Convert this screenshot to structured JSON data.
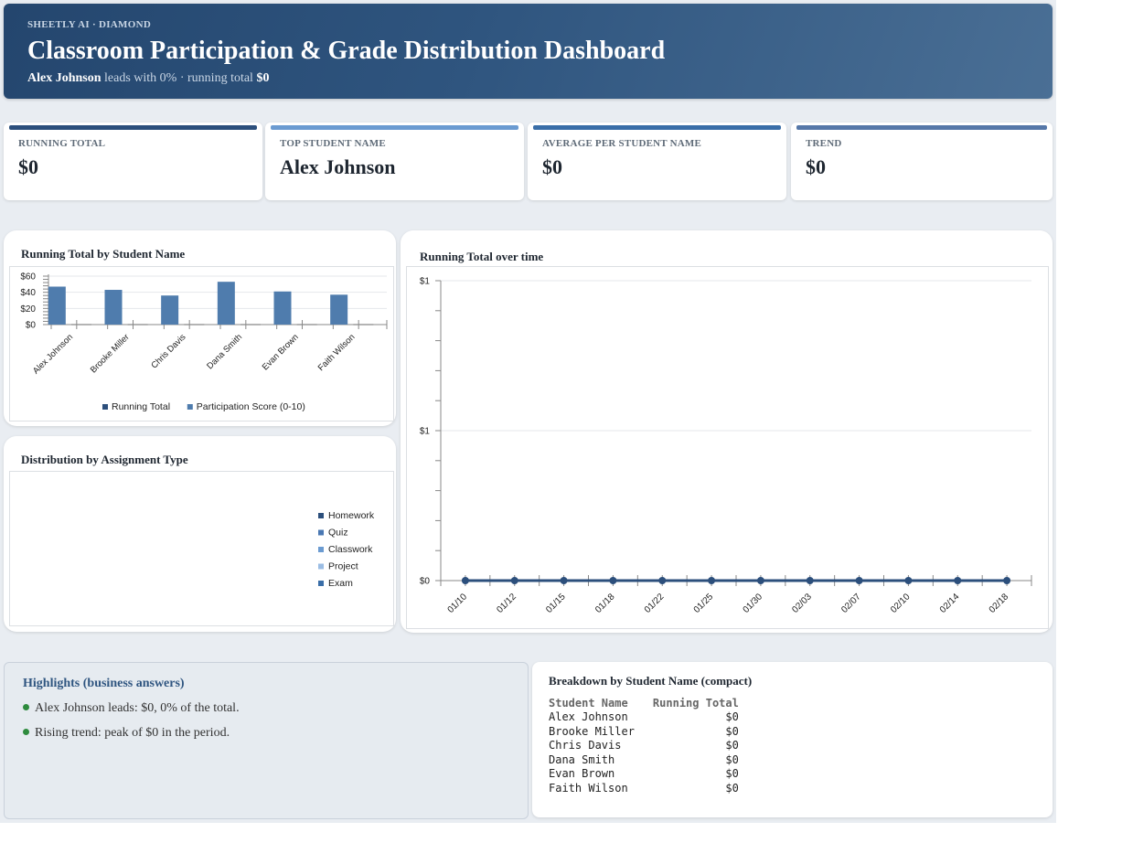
{
  "header": {
    "brand": "SHEETLY AI · DIAMOND",
    "title": "Classroom Participation & Grade Distribution Dashboard",
    "sub_leader": "Alex Johnson",
    "sub_middle": "leads with 0% · running total",
    "sub_total": "$0"
  },
  "kpis": [
    {
      "label": "RUNNING TOTAL",
      "value": "$0",
      "color": "#2c4f7c"
    },
    {
      "label": "TOP STUDENT NAME",
      "value": "Alex Johnson",
      "color": "#6b9bd1"
    },
    {
      "label": "AVERAGE PER STUDENT NAME",
      "value": "$0",
      "color": "#3a6ea8"
    },
    {
      "label": "TREND",
      "value": "$0",
      "color": "#5577a8"
    }
  ],
  "bar_card": {
    "title": "Running Total by Student Name"
  },
  "donut_card": {
    "title": "Distribution by Assignment Type"
  },
  "line_card": {
    "title": "Running Total over time"
  },
  "chart_data": [
    {
      "type": "bar",
      "title": "Running Total by Student Name",
      "categories": [
        "Alex Johnson",
        "Brooke Miller",
        "Chris Davis",
        "Dana Smith",
        "Evan Brown",
        "Faith Wilson"
      ],
      "series": [
        {
          "name": "Running Total",
          "values": [
            0,
            0,
            0,
            0,
            0,
            0
          ],
          "color": "#2c4f7c"
        },
        {
          "name": "Participation Score (0-10)",
          "values": [
            47,
            43,
            36,
            53,
            41,
            37
          ],
          "color": "#4f7cad"
        }
      ],
      "y_ticks": [
        "$0",
        "$20",
        "$40",
        "$60"
      ],
      "ylim": [
        0,
        60
      ],
      "legend": "bottom"
    },
    {
      "type": "pie",
      "title": "Distribution by Assignment Type",
      "categories": [
        "Homework",
        "Quiz",
        "Classwork",
        "Project",
        "Exam"
      ],
      "values": [
        0,
        0,
        0,
        0,
        0
      ],
      "colors": [
        "#2c4f7c",
        "#4a78b3",
        "#6b9bd1",
        "#9bbde4",
        "#3a6ea8"
      ],
      "legend": "right"
    },
    {
      "type": "line",
      "title": "Running Total over time",
      "x": [
        "01/10",
        "01/12",
        "01/15",
        "01/18",
        "01/22",
        "01/25",
        "01/30",
        "02/03",
        "02/07",
        "02/10",
        "02/14",
        "02/18"
      ],
      "series": [
        {
          "name": "Running Total",
          "values": [
            0,
            0,
            0,
            0,
            0,
            0,
            0,
            0,
            0,
            0,
            0,
            0
          ],
          "color": "#2c4f7c"
        }
      ],
      "y_ticks": [
        "$0",
        "$1",
        "$1"
      ],
      "ylim": [
        0,
        1
      ],
      "grid": true
    }
  ],
  "highlights": {
    "title": "Highlights (business answers)",
    "items": [
      "Alex Johnson leads: $0, 0% of the total.",
      "Rising trend: peak of $0 in the period."
    ]
  },
  "breakdown": {
    "title": "Breakdown by Student Name (compact)",
    "headers": [
      "Student Name",
      "Running Total"
    ],
    "rows": [
      [
        "Alex Johnson",
        "$0"
      ],
      [
        "Brooke Miller",
        "$0"
      ],
      [
        "Chris Davis",
        "$0"
      ],
      [
        "Dana Smith",
        "$0"
      ],
      [
        "Evan Brown",
        "$0"
      ],
      [
        "Faith Wilson",
        "$0"
      ]
    ]
  }
}
